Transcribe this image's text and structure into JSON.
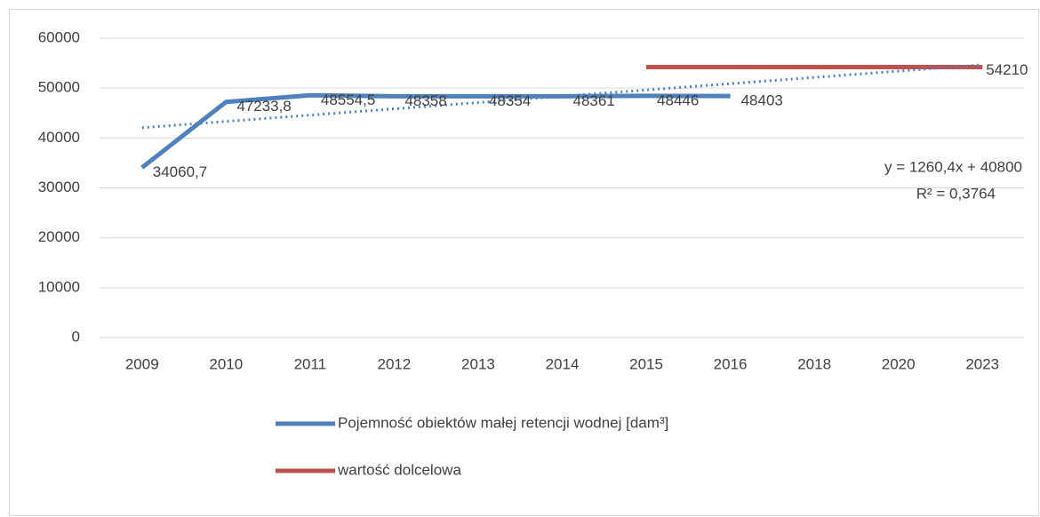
{
  "chart_data": {
    "type": "line",
    "categories": [
      "2009",
      "2010",
      "2011",
      "2012",
      "2013",
      "2014",
      "2015",
      "2016",
      "2018",
      "2020",
      "2023"
    ],
    "series": [
      {
        "name": "Pojemność obiektów małej retencji wodnej [dam³]",
        "color": "#4f81bd",
        "values": [
          34060.7,
          47233.8,
          48554.5,
          48358,
          48354,
          48361,
          48446,
          48403,
          null,
          null,
          null
        ],
        "value_labels": [
          "34060,7",
          "47233,8",
          "48554,5",
          "48358",
          "48354",
          "48361",
          "48446",
          "48403",
          null,
          null,
          null
        ]
      },
      {
        "name": "wartość dolcelowa",
        "color": "#c0504d",
        "values": [
          null,
          null,
          null,
          null,
          null,
          null,
          54210,
          54210,
          54210,
          54210,
          54210
        ],
        "value_labels": [
          null,
          null,
          null,
          null,
          null,
          null,
          null,
          null,
          null,
          null,
          "54210"
        ]
      }
    ],
    "trendline": {
      "color": "#4f81bd",
      "slope": 1260.4,
      "intercept": 40800,
      "equation": "y = 1260,4x + 40800",
      "r2": "R² = 0,3764"
    },
    "ylim": [
      0,
      60000
    ],
    "yticks": [
      0,
      10000,
      20000,
      30000,
      40000,
      50000,
      60000
    ],
    "grid": true,
    "legend": "bottom"
  }
}
